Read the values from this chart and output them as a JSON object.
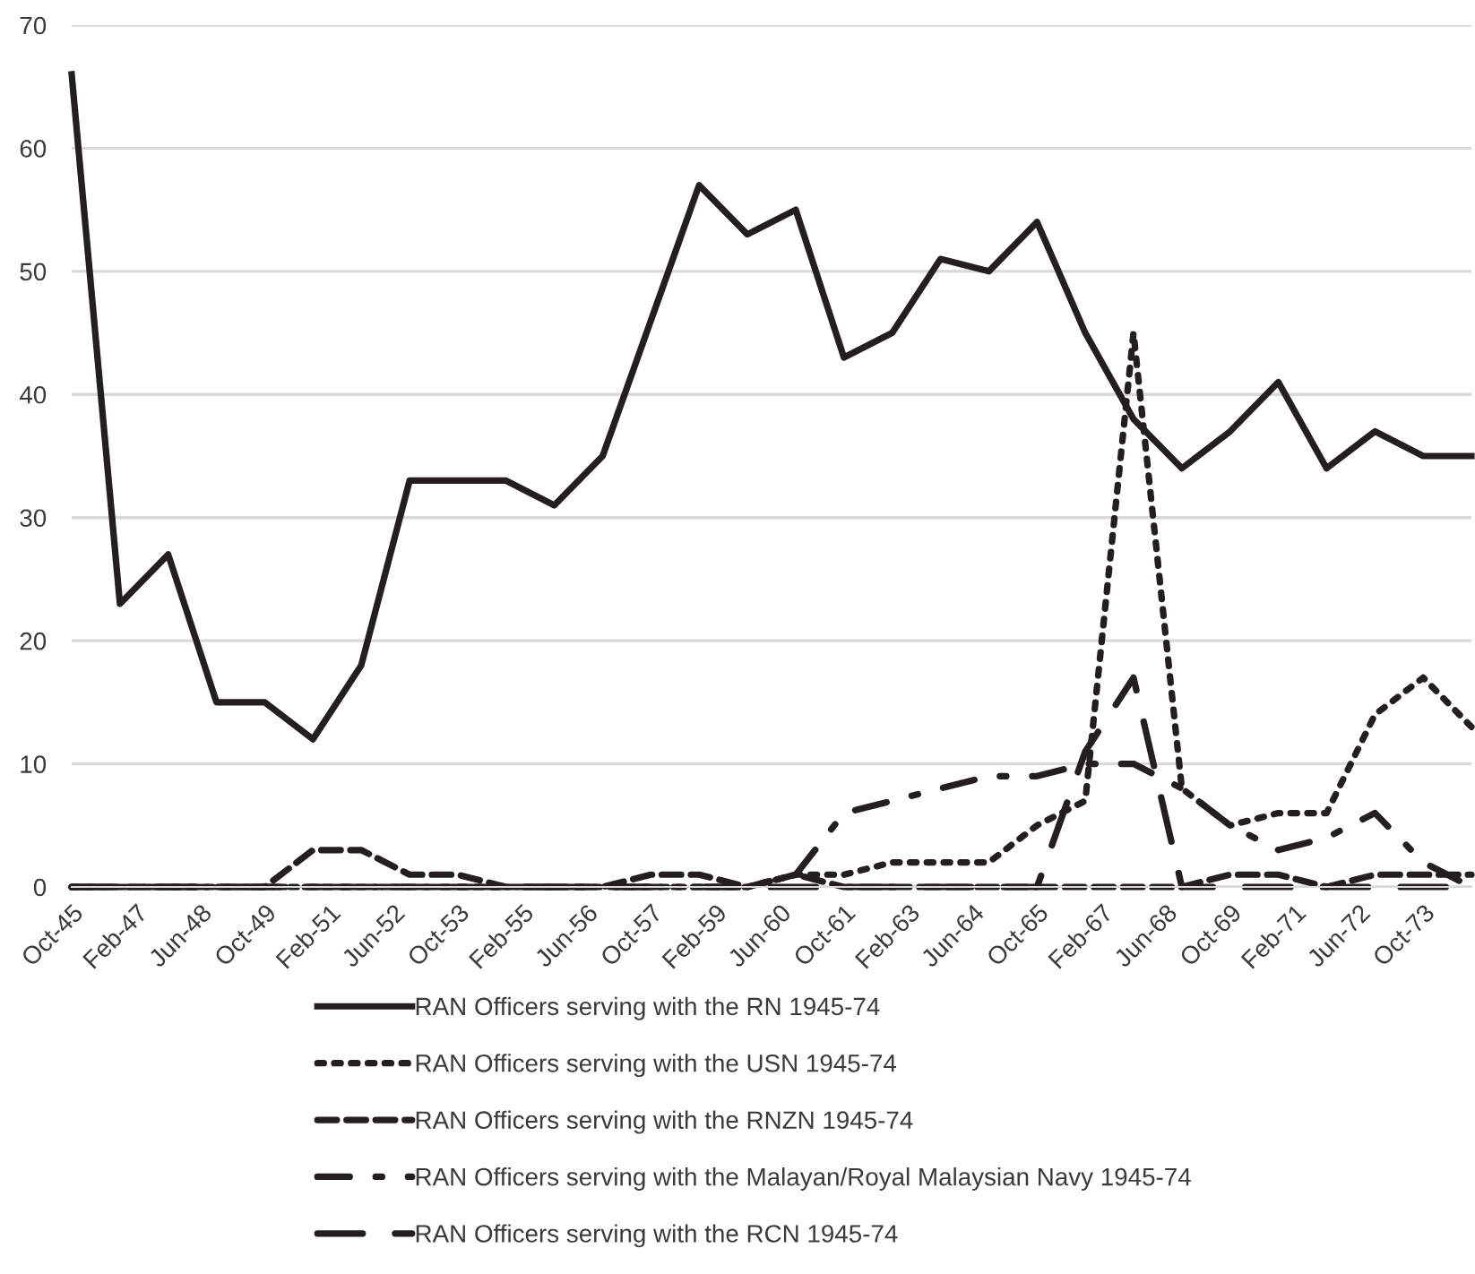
{
  "chart_data": {
    "type": "line",
    "x": [
      "1945-10",
      "1946-10",
      "1947-10",
      "1948-10",
      "1949-10",
      "1950-10",
      "1951-10",
      "1952-10",
      "1953-10",
      "1954-10",
      "1955-10",
      "1956-10",
      "1957-10",
      "1958-10",
      "1959-10",
      "1960-10",
      "1961-10",
      "1962-10",
      "1963-10",
      "1964-10",
      "1965-10",
      "1966-10",
      "1967-10",
      "1968-10",
      "1969-10",
      "1970-10",
      "1971-10",
      "1972-10",
      "1973-10",
      "1974-10"
    ],
    "series": [
      {
        "name": "RAN Officers serving with the RN 1945-74",
        "color": "#231f20",
        "line_style": "solid",
        "values": [
          66,
          23,
          27,
          15,
          15,
          12,
          18,
          33,
          33,
          33,
          31,
          35,
          46,
          57,
          53,
          55,
          43,
          45,
          51,
          50,
          54,
          45,
          38,
          34,
          37,
          41,
          34,
          37,
          35,
          35
        ]
      },
      {
        "name": "RAN Officers serving with the USN 1945-74",
        "color": "#231f20",
        "line_style": "dotted",
        "values": [
          0,
          0,
          0,
          0,
          0,
          0,
          0,
          0,
          0,
          0,
          0,
          0,
          0,
          0,
          0,
          1,
          1,
          2,
          2,
          2,
          5,
          7,
          45,
          8,
          5,
          6,
          6,
          14,
          17,
          13
        ]
      },
      {
        "name": "RAN Officers serving with the RNZN 1945-74",
        "color": "#231f20",
        "line_style": "dashed",
        "values": [
          0,
          0,
          0,
          0,
          0,
          3,
          3,
          1,
          1,
          0,
          0,
          0,
          1,
          1,
          0,
          1,
          0,
          0,
          0,
          0,
          0,
          0,
          0,
          0,
          1,
          1,
          0,
          1,
          1,
          1
        ]
      },
      {
        "name": "RAN Officers serving with the Malayan/Royal Malaysian Navy 1945-74",
        "color": "#231f20",
        "line_style": "dashdot",
        "values": [
          0,
          0,
          0,
          0,
          0,
          0,
          0,
          0,
          0,
          0,
          0,
          0,
          0,
          0,
          0,
          1,
          6,
          7,
          8,
          9,
          9,
          10,
          10,
          8,
          5,
          3,
          4,
          6,
          2,
          0
        ]
      },
      {
        "name": "RAN Officers serving with the RCN 1945-74",
        "color": "#231f20",
        "line_style": "longdash",
        "values": [
          0,
          0,
          0,
          0,
          0,
          0,
          0,
          0,
          0,
          0,
          0,
          0,
          0,
          0,
          0,
          0,
          0,
          0,
          0,
          0,
          0,
          11,
          17,
          0,
          0,
          0,
          0,
          0,
          0,
          0
        ]
      }
    ],
    "xlim": [
      "1945-10",
      "1974-10"
    ],
    "xticks": [
      {
        "value": "1945-10",
        "label": "Oct-45"
      },
      {
        "value": "1947-02",
        "label": "Feb-47"
      },
      {
        "value": "1948-06",
        "label": "Jun-48"
      },
      {
        "value": "1949-10",
        "label": "Oct-49"
      },
      {
        "value": "1951-02",
        "label": "Feb-51"
      },
      {
        "value": "1952-06",
        "label": "Jun-52"
      },
      {
        "value": "1953-10",
        "label": "Oct-53"
      },
      {
        "value": "1955-02",
        "label": "Feb-55"
      },
      {
        "value": "1956-06",
        "label": "Jun-56"
      },
      {
        "value": "1957-10",
        "label": "Oct-57"
      },
      {
        "value": "1959-02",
        "label": "Feb-59"
      },
      {
        "value": "1960-06",
        "label": "Jun-60"
      },
      {
        "value": "1961-10",
        "label": "Oct-61"
      },
      {
        "value": "1963-02",
        "label": "Feb-63"
      },
      {
        "value": "1964-06",
        "label": "Jun-64"
      },
      {
        "value": "1965-10",
        "label": "Oct-65"
      },
      {
        "value": "1967-02",
        "label": "Feb-67"
      },
      {
        "value": "1968-06",
        "label": "Jun-68"
      },
      {
        "value": "1969-10",
        "label": "Oct-69"
      },
      {
        "value": "1971-02",
        "label": "Feb-71"
      },
      {
        "value": "1972-06",
        "label": "Jun-72"
      },
      {
        "value": "1973-10",
        "label": "Oct-73"
      }
    ],
    "ylim": [
      0,
      70
    ],
    "yticks": [
      0,
      10,
      20,
      30,
      40,
      50,
      60,
      70
    ],
    "grid": "y",
    "legend": "bottom",
    "marker": "none"
  }
}
